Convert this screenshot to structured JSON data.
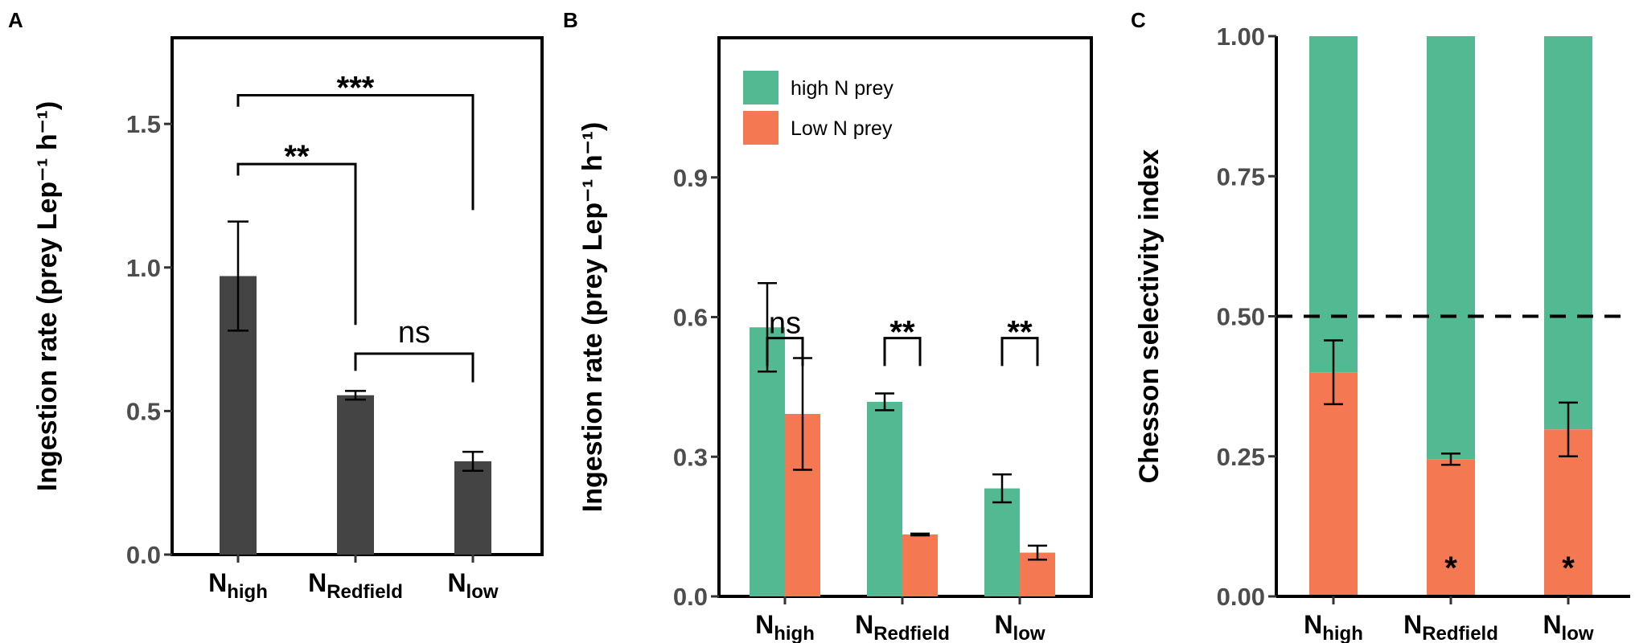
{
  "chart_data": [
    {
      "panel": "A",
      "type": "bar",
      "ylabel": "Ingestion rate (prey Lep⁻¹ h⁻¹)",
      "ylim": [
        0,
        1.8
      ],
      "yticks": [
        "0.0",
        "0.5",
        "1.0",
        "1.5"
      ],
      "categories": [
        {
          "main": "N",
          "sub": "high"
        },
        {
          "main": "N",
          "sub": "Redfield"
        },
        {
          "main": "N",
          "sub": "low"
        }
      ],
      "series": [
        {
          "name": "Ingestion rate",
          "color": "#444444",
          "values": [
            0.97,
            0.555,
            0.325
          ],
          "err": [
            0.19,
            0.015,
            0.033
          ]
        }
      ],
      "annotations": [
        {
          "label": "***",
          "from": 0,
          "to": 2,
          "y": 1.6,
          "drop_left": 1.56,
          "drop_right": 1.2
        },
        {
          "label": "**",
          "from": 0,
          "to": 1,
          "y": 1.36,
          "drop_left": 1.32,
          "drop_right": 0.8
        },
        {
          "label": "ns",
          "from": 1,
          "to": 2,
          "y": 0.7,
          "drop_left": 0.64,
          "drop_right": 0.6
        }
      ]
    },
    {
      "panel": "B",
      "type": "bar",
      "ylabel": "Ingestion rate (prey Lep⁻¹ h⁻¹)",
      "ylim": [
        0,
        1.2
      ],
      "yticks": [
        "0.0",
        "0.3",
        "0.6",
        "0.9"
      ],
      "categories": [
        {
          "main": "N",
          "sub": "high"
        },
        {
          "main": "N",
          "sub": "Redfield"
        },
        {
          "main": "N",
          "sub": "low"
        }
      ],
      "series": [
        {
          "name": "high N prey",
          "color": "#52b993",
          "values": [
            0.578,
            0.418,
            0.232
          ],
          "err": [
            0.095,
            0.018,
            0.03
          ]
        },
        {
          "name": "Low N prey",
          "color": "#f47852",
          "values": [
            0.392,
            0.133,
            0.094
          ],
          "err": [
            0.12,
            0.002,
            0.015
          ]
        }
      ],
      "legend": {
        "position": "top-left",
        "entries": [
          "high N prey",
          "Low N prey"
        ]
      },
      "annotations": [
        {
          "label": "ns",
          "group": 0
        },
        {
          "label": "**",
          "group": 1
        },
        {
          "label": "**",
          "group": 2
        }
      ]
    },
    {
      "panel": "C",
      "type": "bar",
      "stacked": true,
      "ylabel": "Chesson selectivity index",
      "ylim": [
        0,
        1.0
      ],
      "yticks": [
        "0.00",
        "0.25",
        "0.50",
        "0.75",
        "1.00"
      ],
      "categories": [
        {
          "main": "N",
          "sub": "high"
        },
        {
          "main": "N",
          "sub": "Redfield"
        },
        {
          "main": "N",
          "sub": "low"
        }
      ],
      "series": [
        {
          "name": "Low N prey",
          "color": "#f47852",
          "values": [
            0.4,
            0.245,
            0.298
          ],
          "err": [
            0.057,
            0.01,
            0.048
          ]
        },
        {
          "name": "high N prey",
          "color": "#52b993",
          "values": [
            0.6,
            0.755,
            0.702
          ]
        }
      ],
      "reference_line": 0.5,
      "annotations": [
        {
          "label": "",
          "bar": 0
        },
        {
          "label": "*",
          "bar": 1
        },
        {
          "label": "*",
          "bar": 2
        }
      ]
    }
  ]
}
